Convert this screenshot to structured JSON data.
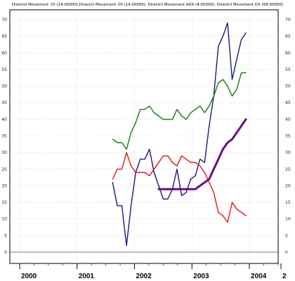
{
  "chart_data": {
    "type": "line",
    "title": "Directnl Movement -Di (14.00000),Directnl Movement -DI (14.00000), Directnl Movement ADX (4.00000), Directnl Movement DX (68.00000)",
    "xlabel": "",
    "ylabel": "",
    "xlim": [
      2000,
      2004.55
    ],
    "ylim": [
      -5,
      72
    ],
    "yticks": [
      0,
      5,
      10,
      15,
      20,
      25,
      30,
      35,
      40,
      45,
      50,
      55,
      60,
      65,
      70
    ],
    "xticks": [
      "2000",
      "2001",
      "2002",
      "2003",
      "2004",
      "2"
    ],
    "xtick_positions": [
      2000,
      2001,
      2002,
      2003,
      2004,
      2004.55
    ],
    "grid": true,
    "legend": "none",
    "series": [
      {
        "color": "#1a1a7a",
        "width": 1.4,
        "x": [
          2001.62,
          2001.7,
          2001.78,
          2001.86,
          2001.94,
          2002.02,
          2002.1,
          2002.18,
          2002.26,
          2002.34,
          2002.42,
          2002.5,
          2002.58,
          2002.66,
          2002.74,
          2002.82,
          2002.9,
          2002.98,
          2003.06,
          2003.14,
          2003.22,
          2003.3,
          2003.38,
          2003.46,
          2003.54,
          2003.62,
          2003.7,
          2003.78,
          2003.86,
          2003.94,
          2004.02
        ],
        "y": [
          21,
          14,
          14,
          2,
          14,
          24,
          28,
          28,
          31,
          24,
          20,
          16,
          16,
          19,
          25,
          17,
          18,
          22,
          23,
          28,
          27,
          38,
          47,
          62,
          65,
          69,
          52,
          58,
          64,
          66,
          null
        ]
      },
      {
        "color": "#137a13",
        "width": 1.4,
        "x": [
          2001.62,
          2001.7,
          2001.78,
          2001.86,
          2001.94,
          2002.02,
          2002.1,
          2002.18,
          2002.26,
          2002.34,
          2002.42,
          2002.5,
          2002.58,
          2002.66,
          2002.74,
          2002.82,
          2002.9,
          2002.98,
          2003.06,
          2003.14,
          2003.22,
          2003.3,
          2003.38,
          2003.46,
          2003.54,
          2003.62,
          2003.7,
          2003.78,
          2003.86,
          2003.94,
          2004.02
        ],
        "y": [
          34,
          33,
          33,
          31,
          36,
          39,
          43,
          43,
          44,
          42,
          41,
          40,
          40,
          40,
          43,
          41,
          40,
          42,
          43,
          44,
          42,
          44,
          47,
          51,
          52,
          50,
          47,
          49,
          54,
          54,
          null
        ]
      },
      {
        "color": "#e01414",
        "width": 1.4,
        "x": [
          2001.62,
          2001.7,
          2001.78,
          2001.86,
          2001.94,
          2002.02,
          2002.1,
          2002.18,
          2002.26,
          2002.34,
          2002.42,
          2002.5,
          2002.58,
          2002.66,
          2002.74,
          2002.82,
          2002.9,
          2002.98,
          2003.06,
          2003.14,
          2003.22,
          2003.3,
          2003.38,
          2003.46,
          2003.54,
          2003.62,
          2003.7,
          2003.78,
          2003.86,
          2003.94,
          2004.02
        ],
        "y": [
          22,
          25,
          25,
          30,
          26,
          24,
          24,
          24,
          23,
          25,
          27,
          29,
          29,
          27,
          26,
          29,
          28,
          27,
          27,
          26,
          24,
          21,
          18,
          12,
          11,
          9,
          15,
          13,
          12,
          11,
          null
        ]
      },
      {
        "color": "#6a0a82",
        "width": 3,
        "x": [
          2002.42,
          2002.5,
          2002.58,
          2002.66,
          2002.74,
          2002.82,
          2002.9,
          2002.98,
          2003.06,
          2003.14,
          2003.22,
          2003.3,
          2003.38,
          2003.46,
          2003.54,
          2003.62,
          2003.7,
          2003.78,
          2003.86,
          2003.94,
          2004.02
        ],
        "y": [
          19,
          19,
          19,
          19,
          19,
          19,
          19,
          19,
          19,
          20,
          21,
          22,
          25,
          28,
          31,
          33,
          34,
          36,
          38,
          40,
          null
        ]
      }
    ]
  }
}
